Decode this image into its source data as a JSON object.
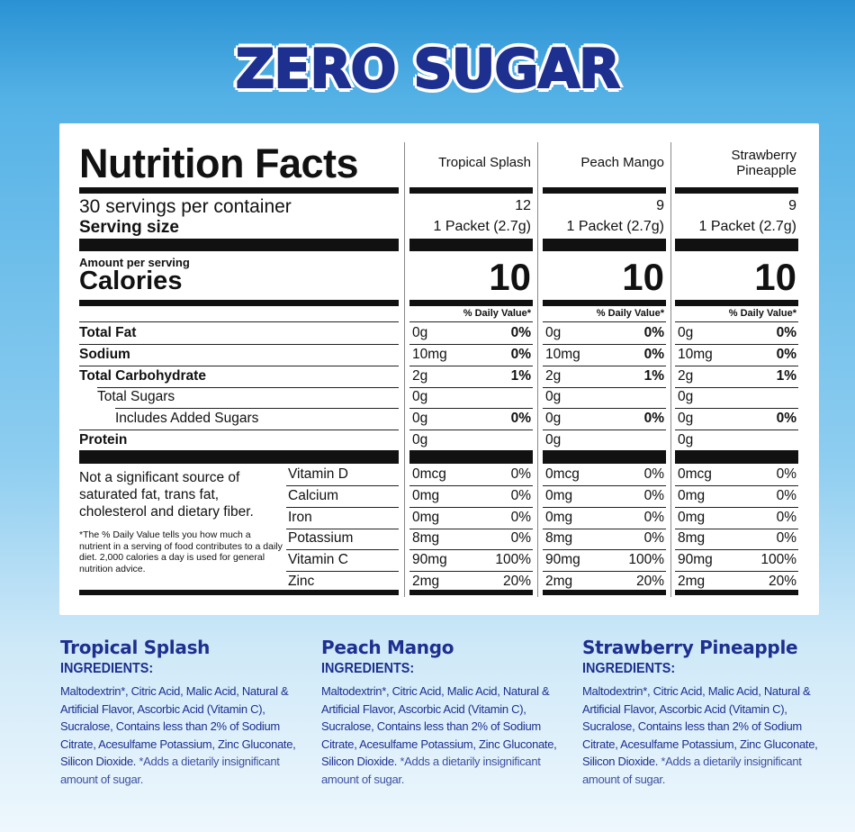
{
  "title": "ZERO SUGAR",
  "label": {
    "heading": "Nutrition Facts",
    "products": [
      "Tropical Splash",
      "Peach Mango",
      "Strawberry Pineapple"
    ],
    "servings_text": "30 servings per container",
    "servings": [
      12,
      9,
      9
    ],
    "serving_size_label": "Serving size",
    "serving_size": [
      "1 Packet (2.7g)",
      "1 Packet (2.7g)",
      "1 Packet (2.7g)"
    ],
    "amount_per_serving": "Amount per serving",
    "calories_label": "Calories",
    "calories": [
      10,
      10,
      10
    ],
    "dv_header": "% Daily Value*",
    "nutrients": [
      {
        "name": "Total Fat",
        "amounts": [
          "0g",
          "0g",
          "0g"
        ],
        "dv": [
          "0%",
          "0%",
          "0%"
        ]
      },
      {
        "name": "Sodium",
        "amounts": [
          "10mg",
          "10mg",
          "10mg"
        ],
        "dv": [
          "0%",
          "0%",
          "0%"
        ]
      },
      {
        "name": "Total Carbohydrate",
        "amounts": [
          "2g",
          "2g",
          "2g"
        ],
        "dv": [
          "1%",
          "1%",
          "1%"
        ]
      },
      {
        "name": "Total Sugars",
        "amounts": [
          "0g",
          "0g",
          "0g"
        ],
        "dv": null
      },
      {
        "name": "Includes Added Sugars",
        "amounts": [
          "0g",
          "0g",
          "0g"
        ],
        "dv": [
          "0%",
          "0%",
          "0%"
        ]
      },
      {
        "name": "Protein",
        "amounts": [
          "0g",
          "0g",
          "0g"
        ],
        "dv": null
      }
    ],
    "note": "Not a significant source of saturated fat, trans fat, cholesterol and dietary fiber.",
    "footnote": "*The % Daily Value tells you how much a nutrient in a serving of food contributes to a daily diet. 2,000 calories a day is used for general nutrition advice.",
    "vitamins": [
      {
        "name": "Vitamin D",
        "amounts": [
          "0mcg",
          "0mcg",
          "0mcg"
        ],
        "dv": [
          "0%",
          "0%",
          "0%"
        ]
      },
      {
        "name": "Calcium",
        "amounts": [
          "0mg",
          "0mg",
          "0mg"
        ],
        "dv": [
          "0%",
          "0%",
          "0%"
        ]
      },
      {
        "name": "Iron",
        "amounts": [
          "0mg",
          "0mg",
          "0mg"
        ],
        "dv": [
          "0%",
          "0%",
          "0%"
        ]
      },
      {
        "name": "Potassium",
        "amounts": [
          "8mg",
          "8mg",
          "8mg"
        ],
        "dv": [
          "0%",
          "0%",
          "0%"
        ]
      },
      {
        "name": "Vitamin C",
        "amounts": [
          "90mg",
          "90mg",
          "90mg"
        ],
        "dv": [
          "100%",
          "100%",
          "100%"
        ]
      },
      {
        "name": "Zinc",
        "amounts": [
          "2mg",
          "2mg",
          "2mg"
        ],
        "dv": [
          "20%",
          "20%",
          "20%"
        ]
      }
    ]
  },
  "ingredients": [
    {
      "product": "Tropical Splash",
      "heading": "INGREDIENTS:",
      "text": "Maltodextrin*, Citric Acid, Malic Acid, Natural & Artificial Flavor, Ascorbic Acid (Vitamin C), Sucralose, Contains less than 2% of Sodium Citrate, Acesulfame Potassium, Zinc Gluconate, Silicon Dioxide.",
      "note": "*Adds a dietarily insignificant amount of sugar."
    },
    {
      "product": "Peach Mango",
      "heading": "INGREDIENTS:",
      "text": "Maltodextrin*, Citric Acid, Malic Acid, Natural & Artificial Flavor, Ascorbic Acid (Vitamin C), Sucralose, Contains less than 2% of Sodium Citrate, Acesulfame Potassium, Zinc Gluconate, Silicon Dioxide.",
      "note": "*Adds a dietarily insignificant amount of sugar."
    },
    {
      "product": "Strawberry Pineapple",
      "heading": "INGREDIENTS:",
      "text": "Maltodextrin*, Citric Acid, Malic Acid, Natural & Artificial Flavor, Ascorbic Acid (Vitamin C), Sucralose, Contains less than 2% of Sodium Citrate, Acesulfame Potassium, Zinc Gluconate, Silicon Dioxide.",
      "note": "*Adds a dietarily insignificant amount of sugar."
    }
  ]
}
